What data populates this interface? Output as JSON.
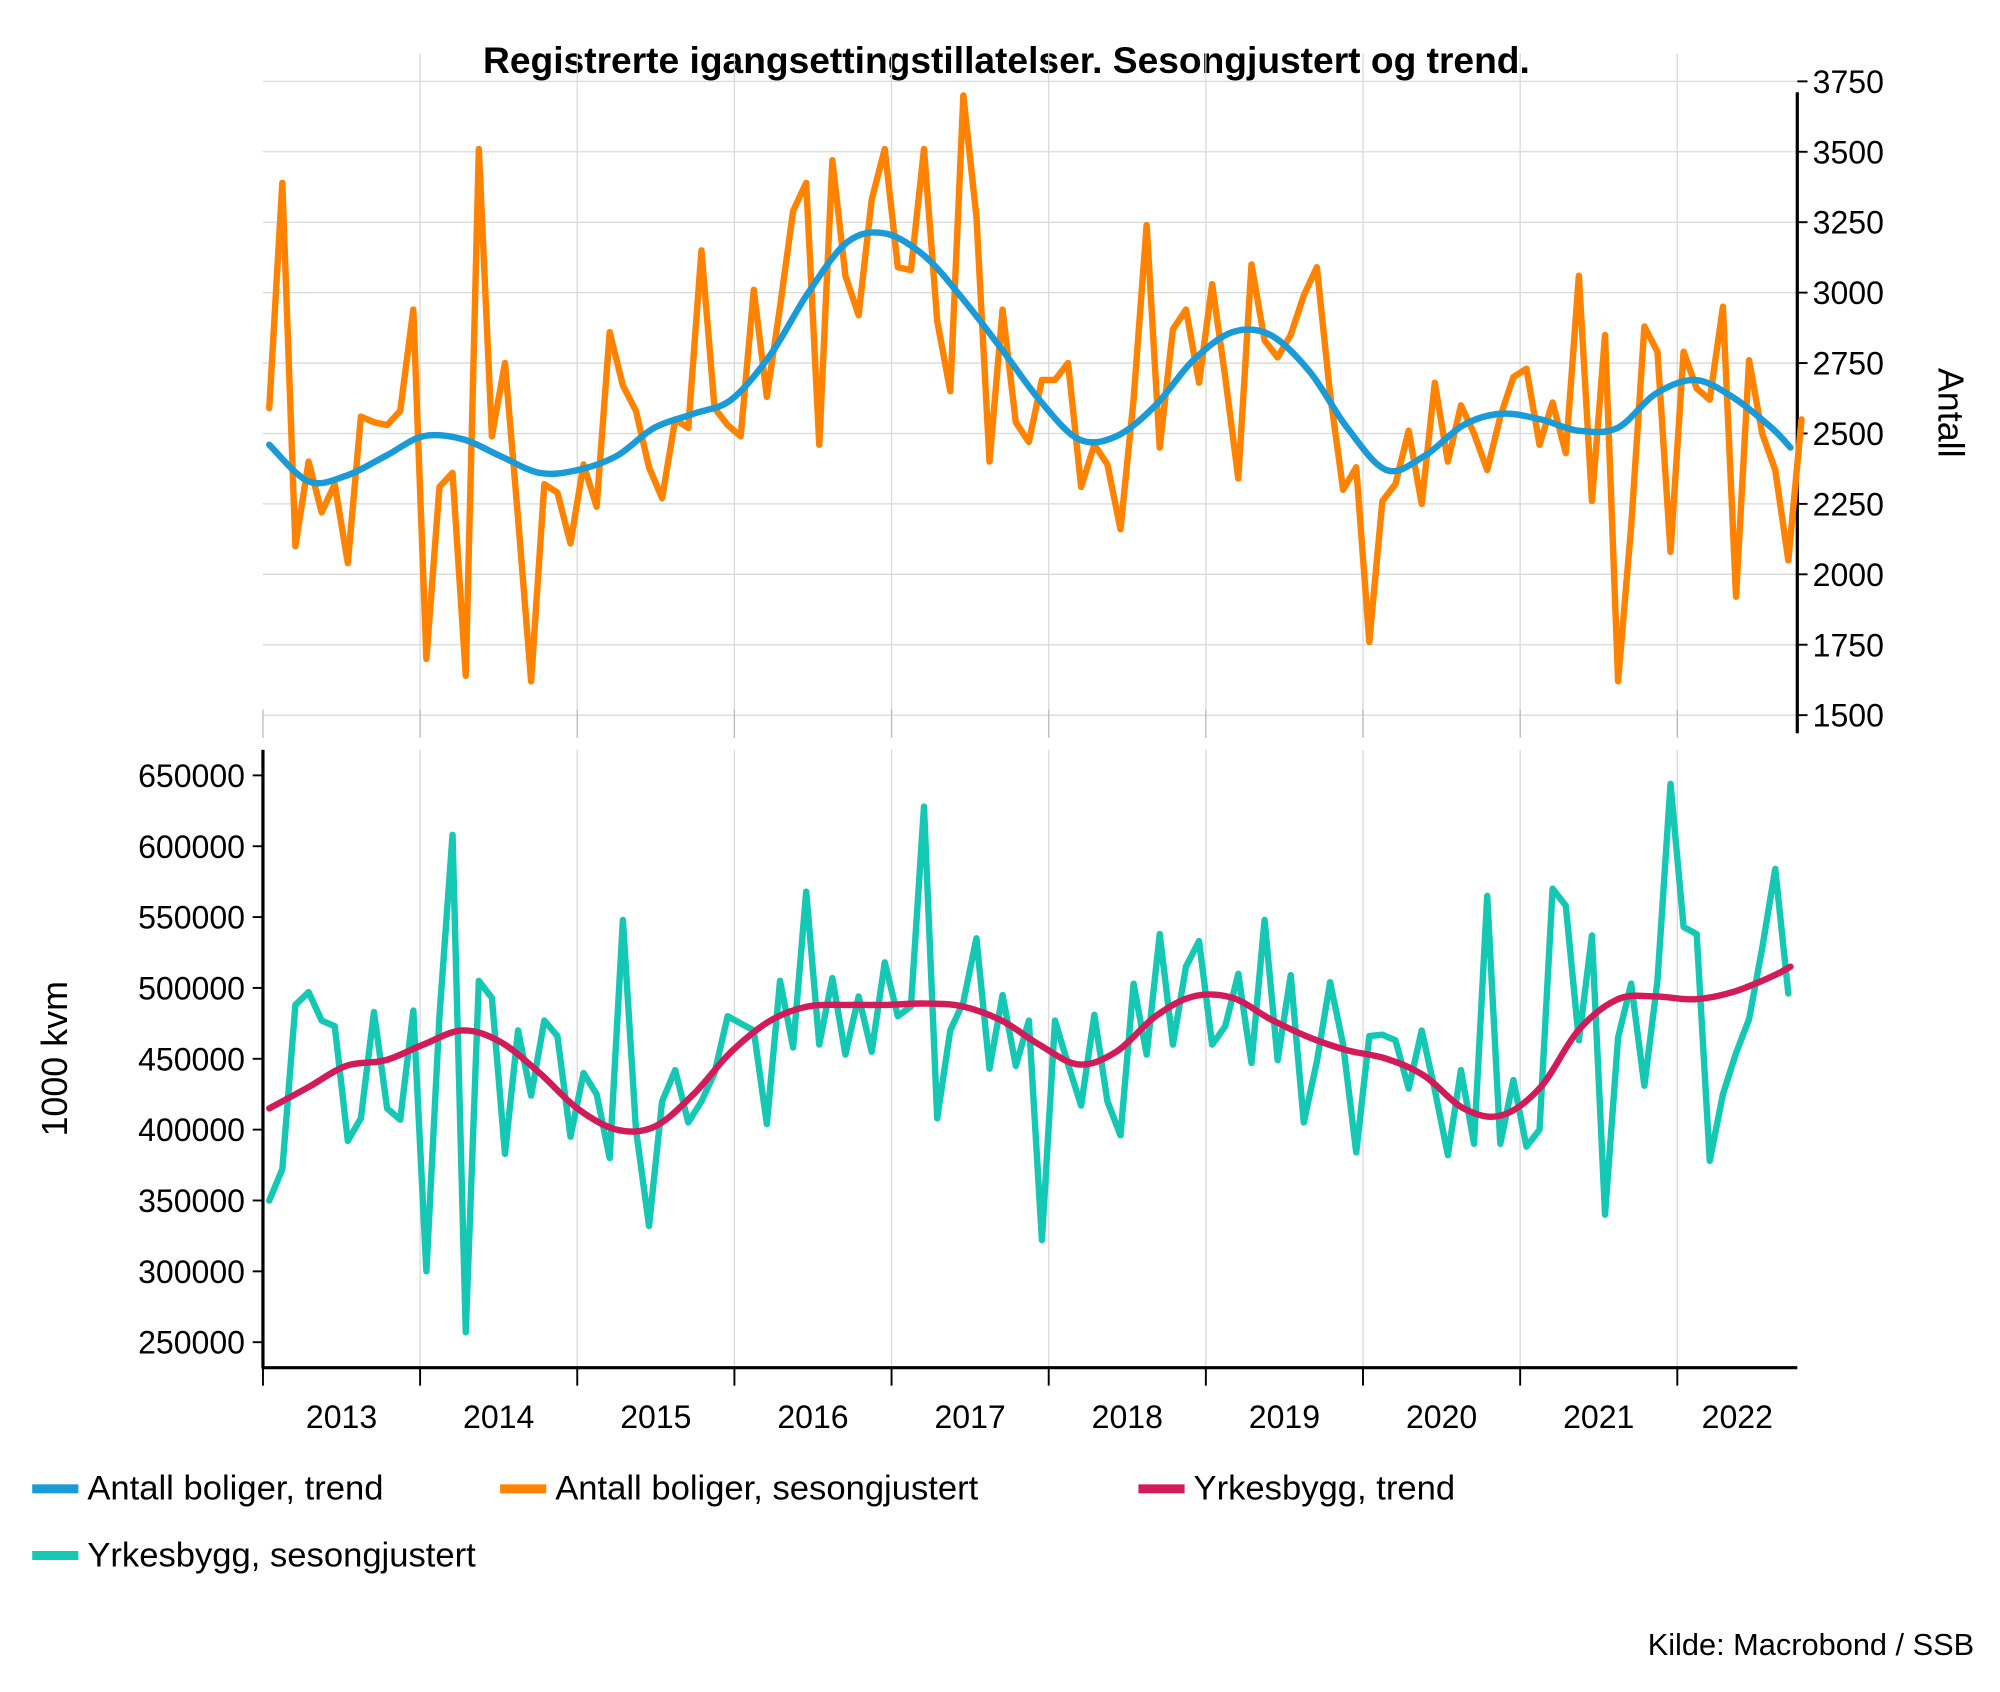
{
  "chart_data": [
    {
      "type": "line",
      "title": "Registrerte igangsettingstillatelser. Sesongjustert og trend.",
      "panel": "top",
      "ylabel": "Antall",
      "y_axis_side": "right",
      "ylim": [
        1420,
        3850
      ],
      "yticks": [
        1500,
        1750,
        2000,
        2250,
        2500,
        2750,
        3000,
        3250,
        3500,
        3750
      ],
      "xlim": [
        2013.0,
        2022.77
      ],
      "grid": true,
      "series": [
        {
          "name": "Antall boliger, sesongjustert",
          "color": "#ff8200",
          "start": 2013.04,
          "step_months": 1,
          "values": [
            2590,
            3390,
            2100,
            2400,
            2220,
            2320,
            2040,
            2560,
            2540,
            2530,
            2580,
            2940,
            1700,
            2310,
            2360,
            1640,
            3510,
            2490,
            2750,
            2200,
            1620,
            2320,
            2290,
            2110,
            2390,
            2240,
            2860,
            2670,
            2580,
            2380,
            2270,
            2550,
            2520,
            3150,
            2590,
            2530,
            2490,
            3010,
            2630,
            2950,
            3290,
            3390,
            2460,
            3470,
            3060,
            2920,
            3330,
            3510,
            3090,
            3080,
            3510,
            2900,
            2650,
            3700,
            3270,
            2400,
            2940,
            2540,
            2470,
            2690,
            2690,
            2750,
            2310,
            2460,
            2390,
            2160,
            2620,
            3240,
            2450,
            2870,
            2940,
            2680,
            3030,
            2700,
            2340,
            3100,
            2830,
            2770,
            2850,
            2990,
            3090,
            2640,
            2300,
            2380,
            1760,
            2260,
            2320,
            2510,
            2250,
            2680,
            2400,
            2600,
            2500,
            2370,
            2560,
            2700,
            2730,
            2460,
            2610,
            2430,
            3060,
            2260,
            2850,
            1620,
            2170,
            2880,
            2790,
            2080,
            2790,
            2660,
            2620,
            2950,
            1920,
            2760,
            2500,
            2370,
            2050,
            2550
          ]
        },
        {
          "name": "Antall boliger, trend",
          "color": "#1a9ad6",
          "x": [
            2013.04,
            2013.29,
            2013.53,
            2013.78,
            2014.02,
            2014.27,
            2014.51,
            2014.76,
            2015.0,
            2015.25,
            2015.49,
            2015.74,
            2015.98,
            2016.23,
            2016.47,
            2016.72,
            2016.96,
            2017.21,
            2017.45,
            2017.7,
            2017.94,
            2018.19,
            2018.43,
            2018.68,
            2018.92,
            2019.17,
            2019.41,
            2019.66,
            2019.9,
            2020.15,
            2020.39,
            2020.64,
            2020.88,
            2021.13,
            2021.37,
            2021.62,
            2021.86,
            2022.11,
            2022.35,
            2022.6,
            2022.72
          ],
          "values": [
            2460,
            2330,
            2350,
            2420,
            2490,
            2480,
            2420,
            2360,
            2370,
            2420,
            2520,
            2570,
            2620,
            2780,
            3000,
            3180,
            3210,
            3130,
            2980,
            2800,
            2620,
            2480,
            2490,
            2600,
            2760,
            2860,
            2850,
            2720,
            2520,
            2370,
            2420,
            2530,
            2570,
            2550,
            2510,
            2520,
            2640,
            2690,
            2630,
            2520,
            2450
          ]
        }
      ]
    },
    {
      "type": "line",
      "panel": "bottom",
      "ylabel": "1000 kvm",
      "y_axis_side": "left",
      "ylim": [
        232000,
        668000
      ],
      "yticks": [
        250000,
        300000,
        350000,
        400000,
        450000,
        500000,
        550000,
        600000,
        650000
      ],
      "xlim": [
        2013.0,
        2022.77
      ],
      "xtick_labels": [
        "2013",
        "2014",
        "2015",
        "2016",
        "2017",
        "2018",
        "2019",
        "2020",
        "2021",
        "2022"
      ],
      "grid": true,
      "series": [
        {
          "name": "Yrkesbygg, sesongjustert",
          "color": "#14c8b4",
          "start": 2013.04,
          "step_months": 1,
          "values": [
            350000,
            372000,
            488000,
            497000,
            477000,
            473000,
            392000,
            408000,
            483000,
            415000,
            407000,
            484000,
            300000,
            480000,
            608000,
            257000,
            505000,
            493000,
            383000,
            470000,
            424000,
            477000,
            466000,
            395000,
            440000,
            425000,
            380000,
            548000,
            400000,
            332000,
            420000,
            442000,
            405000,
            420000,
            440000,
            480000,
            475000,
            470000,
            404000,
            505000,
            458000,
            568000,
            460000,
            507000,
            453000,
            494000,
            455000,
            518000,
            480000,
            487000,
            628000,
            408000,
            470000,
            490000,
            535000,
            443000,
            495000,
            445000,
            477000,
            322000,
            477000,
            446000,
            417000,
            481000,
            420000,
            396000,
            503000,
            453000,
            538000,
            460000,
            515000,
            533000,
            460000,
            473000,
            510000,
            447000,
            548000,
            449000,
            509000,
            405000,
            448000,
            504000,
            460000,
            384000,
            466000,
            467000,
            463000,
            429000,
            470000,
            428000,
            382000,
            442000,
            390000,
            565000,
            390000,
            435000,
            388000,
            400000,
            570000,
            558000,
            463000,
            537000,
            340000,
            465000,
            503000,
            431000,
            505000,
            644000,
            543000,
            538000,
            378000,
            425000,
            454000,
            478000,
            528000,
            584000,
            496000
          ]
        },
        {
          "name": "Yrkesbygg, trend",
          "color": "#d21c5a",
          "x": [
            2013.04,
            2013.29,
            2013.53,
            2013.78,
            2014.02,
            2014.27,
            2014.51,
            2014.76,
            2015.0,
            2015.25,
            2015.49,
            2015.74,
            2015.98,
            2016.23,
            2016.47,
            2016.72,
            2016.96,
            2017.21,
            2017.45,
            2017.7,
            2017.94,
            2018.19,
            2018.43,
            2018.68,
            2018.92,
            2019.17,
            2019.41,
            2019.66,
            2019.9,
            2020.15,
            2020.39,
            2020.64,
            2020.88,
            2021.13,
            2021.37,
            2021.62,
            2021.86,
            2022.11,
            2022.35,
            2022.6,
            2022.72
          ],
          "values": [
            415000,
            430000,
            445000,
            449000,
            460000,
            470000,
            462000,
            440000,
            415000,
            400000,
            402000,
            425000,
            455000,
            477000,
            487000,
            488000,
            488000,
            489000,
            487000,
            477000,
            460000,
            446000,
            455000,
            480000,
            494000,
            493000,
            478000,
            465000,
            456000,
            450000,
            438000,
            415000,
            410000,
            430000,
            470000,
            492000,
            494000,
            492000,
            497000,
            508000,
            515000
          ]
        }
      ]
    }
  ],
  "legend": [
    {
      "label": "Antall boliger, trend",
      "color": "#1a9ad6"
    },
    {
      "label": "Antall boliger, sesongjustert",
      "color": "#ff8200"
    },
    {
      "label": "Yrkesbygg, trend",
      "color": "#d21c5a"
    },
    {
      "label": "Yrkesbygg, sesongjustert",
      "color": "#14c8b4"
    }
  ],
  "source": "Kilde: Macrobond / SSB"
}
